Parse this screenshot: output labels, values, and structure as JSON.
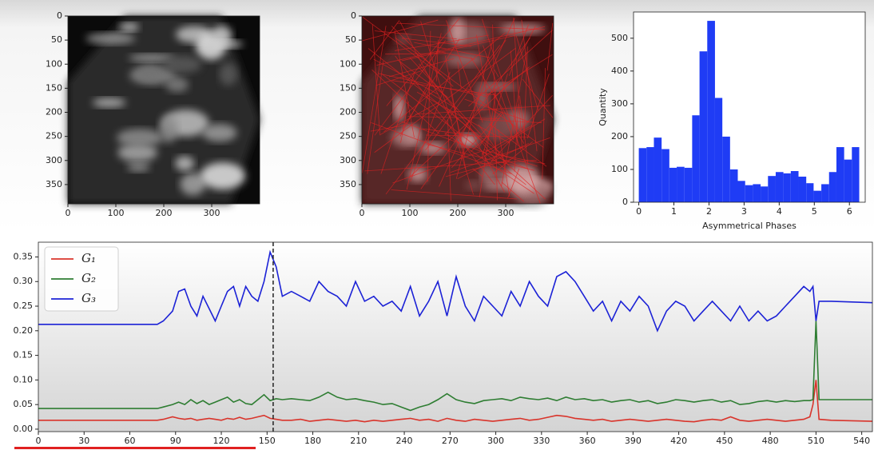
{
  "chart_data": [
    {
      "type": "image",
      "xlim": [
        0,
        400
      ],
      "ylim": [
        390,
        0
      ],
      "xticks": [
        0,
        100,
        200,
        300
      ],
      "yticks": [
        0,
        50,
        100,
        150,
        200,
        250,
        300,
        350
      ]
    },
    {
      "type": "image",
      "overlay": "#e02020",
      "xlim": [
        0,
        400
      ],
      "ylim": [
        390,
        0
      ],
      "xticks": [
        0,
        100,
        200,
        300
      ],
      "yticks": [
        0,
        50,
        100,
        150,
        200,
        250,
        300,
        350
      ]
    },
    {
      "type": "histogram",
      "xlabel": "Asymmetrical Phases",
      "ylabel": "Quantity",
      "color": "#1f3cf5",
      "bins": [
        0,
        0.22,
        0.43,
        0.65,
        0.87,
        1.08,
        1.3,
        1.52,
        1.73,
        1.95,
        2.17,
        2.38,
        2.6,
        2.82,
        3.03,
        3.25,
        3.47,
        3.68,
        3.9,
        4.12,
        4.33,
        4.55,
        4.77,
        4.98,
        5.2,
        5.42,
        5.63,
        5.85,
        6.07,
        6.28
      ],
      "values": [
        165,
        168,
        197,
        162,
        105,
        108,
        105,
        265,
        460,
        553,
        318,
        200,
        100,
        65,
        52,
        55,
        48,
        80,
        92,
        88,
        95,
        78,
        58,
        35,
        55,
        92,
        168,
        130,
        168
      ],
      "xlim": [
        -0.15,
        6.45
      ],
      "ylim": [
        0,
        580
      ],
      "xticks": [
        0,
        1,
        2,
        3,
        4,
        5,
        6
      ],
      "yticks": [
        0,
        100,
        200,
        300,
        400,
        500
      ]
    },
    {
      "type": "line",
      "legend": "upper left",
      "vline": 154,
      "x": [
        0,
        78,
        82,
        88,
        92,
        96,
        100,
        104,
        108,
        112,
        116,
        120,
        124,
        128,
        132,
        136,
        140,
        144,
        148,
        152,
        156,
        160,
        166,
        172,
        178,
        184,
        190,
        196,
        202,
        208,
        214,
        220,
        226,
        232,
        238,
        244,
        250,
        256,
        262,
        268,
        274,
        280,
        286,
        292,
        298,
        304,
        310,
        316,
        322,
        328,
        334,
        340,
        346,
        352,
        358,
        364,
        370,
        376,
        382,
        388,
        394,
        400,
        406,
        412,
        418,
        424,
        430,
        436,
        442,
        448,
        454,
        460,
        466,
        472,
        478,
        484,
        490,
        496,
        502,
        506,
        508,
        510,
        512,
        520,
        547
      ],
      "series": [
        {
          "name": "G₁",
          "color": "#d9342b",
          "values": [
            0.018,
            0.018,
            0.02,
            0.025,
            0.022,
            0.02,
            0.022,
            0.018,
            0.02,
            0.022,
            0.02,
            0.018,
            0.022,
            0.02,
            0.024,
            0.02,
            0.022,
            0.025,
            0.028,
            0.022,
            0.02,
            0.018,
            0.018,
            0.02,
            0.016,
            0.018,
            0.02,
            0.018,
            0.016,
            0.018,
            0.015,
            0.018,
            0.016,
            0.018,
            0.02,
            0.022,
            0.018,
            0.02,
            0.016,
            0.022,
            0.018,
            0.016,
            0.02,
            0.018,
            0.016,
            0.018,
            0.02,
            0.022,
            0.018,
            0.02,
            0.024,
            0.028,
            0.026,
            0.022,
            0.02,
            0.018,
            0.02,
            0.016,
            0.018,
            0.02,
            0.018,
            0.016,
            0.018,
            0.02,
            0.018,
            0.016,
            0.015,
            0.018,
            0.02,
            0.018,
            0.025,
            0.018,
            0.016,
            0.018,
            0.02,
            0.018,
            0.016,
            0.018,
            0.02,
            0.025,
            0.05,
            0.1,
            0.02,
            0.018,
            0.016
          ]
        },
        {
          "name": "G₂",
          "color": "#2e7d32",
          "values": [
            0.042,
            0.042,
            0.045,
            0.05,
            0.055,
            0.05,
            0.06,
            0.052,
            0.058,
            0.05,
            0.055,
            0.06,
            0.065,
            0.055,
            0.06,
            0.052,
            0.05,
            0.06,
            0.07,
            0.058,
            0.062,
            0.06,
            0.062,
            0.06,
            0.058,
            0.065,
            0.075,
            0.065,
            0.06,
            0.062,
            0.058,
            0.055,
            0.05,
            0.052,
            0.045,
            0.038,
            0.045,
            0.05,
            0.06,
            0.072,
            0.06,
            0.055,
            0.052,
            0.058,
            0.06,
            0.062,
            0.058,
            0.065,
            0.062,
            0.06,
            0.063,
            0.058,
            0.065,
            0.06,
            0.062,
            0.058,
            0.06,
            0.055,
            0.058,
            0.06,
            0.055,
            0.058,
            0.052,
            0.055,
            0.06,
            0.058,
            0.055,
            0.058,
            0.06,
            0.055,
            0.058,
            0.05,
            0.052,
            0.056,
            0.058,
            0.055,
            0.058,
            0.056,
            0.058,
            0.058,
            0.06,
            0.22,
            0.06,
            0.06,
            0.06
          ]
        },
        {
          "name": "G₃",
          "color": "#1c22d6",
          "values": [
            0.213,
            0.213,
            0.22,
            0.24,
            0.28,
            0.285,
            0.25,
            0.23,
            0.27,
            0.245,
            0.22,
            0.25,
            0.28,
            0.29,
            0.25,
            0.29,
            0.27,
            0.26,
            0.3,
            0.36,
            0.33,
            0.27,
            0.28,
            0.27,
            0.26,
            0.3,
            0.28,
            0.27,
            0.25,
            0.3,
            0.26,
            0.27,
            0.25,
            0.26,
            0.24,
            0.29,
            0.23,
            0.26,
            0.3,
            0.23,
            0.31,
            0.25,
            0.22,
            0.27,
            0.25,
            0.23,
            0.28,
            0.25,
            0.3,
            0.27,
            0.25,
            0.31,
            0.32,
            0.3,
            0.27,
            0.24,
            0.26,
            0.22,
            0.26,
            0.24,
            0.27,
            0.25,
            0.2,
            0.24,
            0.26,
            0.25,
            0.22,
            0.24,
            0.26,
            0.24,
            0.22,
            0.25,
            0.22,
            0.24,
            0.22,
            0.23,
            0.25,
            0.27,
            0.29,
            0.28,
            0.29,
            0.22,
            0.26,
            0.26,
            0.257
          ]
        }
      ],
      "xlim": [
        0,
        547
      ],
      "ylim": [
        -0.005,
        0.38
      ],
      "xticks": [
        0,
        30,
        60,
        90,
        120,
        150,
        180,
        210,
        240,
        270,
        300,
        330,
        360,
        390,
        420,
        450,
        480,
        510,
        540
      ],
      "yticks": [
        {
          "value": 0,
          "label": "0.00"
        },
        {
          "value": 0.05,
          "label": "0.05"
        },
        {
          "value": 0.1,
          "label": "0.10"
        },
        {
          "value": 0.15,
          "label": "0.15"
        },
        {
          "value": 0.2,
          "label": "0.20"
        },
        {
          "value": 0.25,
          "label": "0.25"
        },
        {
          "value": 0.3,
          "label": "0.30"
        },
        {
          "value": 0.35,
          "label": "0.35"
        }
      ]
    }
  ]
}
